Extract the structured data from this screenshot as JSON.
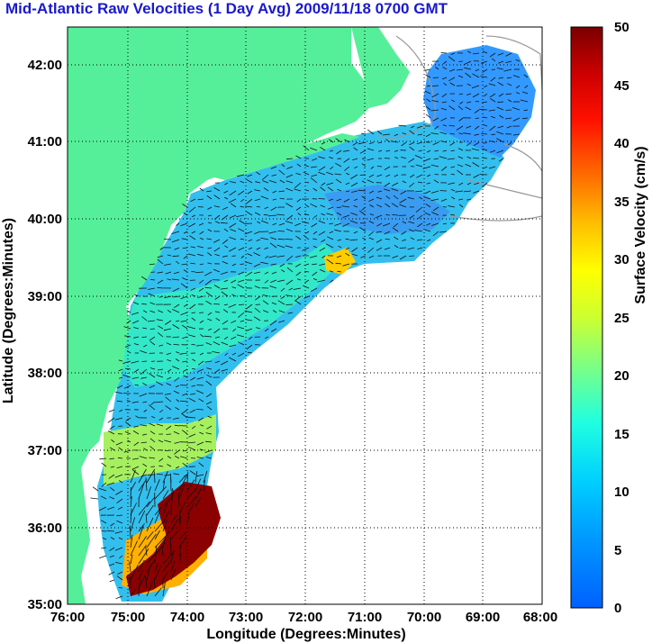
{
  "title": "Mid-Atlantic Raw Velocities (1 Day Avg) 2009/11/18 0700 GMT",
  "axes": {
    "x_label": "Longitude (Degrees:Minutes)",
    "y_label": "Latitude (Degrees:Minutes)",
    "x_ticks": [
      "76:00",
      "75:00",
      "74:00",
      "73:00",
      "72:00",
      "71:00",
      "70:00",
      "69:00",
      "68:00"
    ],
    "y_ticks": [
      "35:00",
      "36:00",
      "37:00",
      "38:00",
      "39:00",
      "40:00",
      "41:00",
      "42:00"
    ]
  },
  "colorbar": {
    "label": "Surface Velocity (cm/s)",
    "ticks": [
      "0",
      "5",
      "10",
      "15",
      "20",
      "25",
      "30",
      "35",
      "40",
      "45",
      "50"
    ],
    "range": [
      0,
      50
    ]
  },
  "colors": {
    "land": "#55ef99",
    "title": "#1a1acc",
    "low": "#0080ff",
    "mid": "#00e0e0",
    "high": "#7a0000"
  }
}
